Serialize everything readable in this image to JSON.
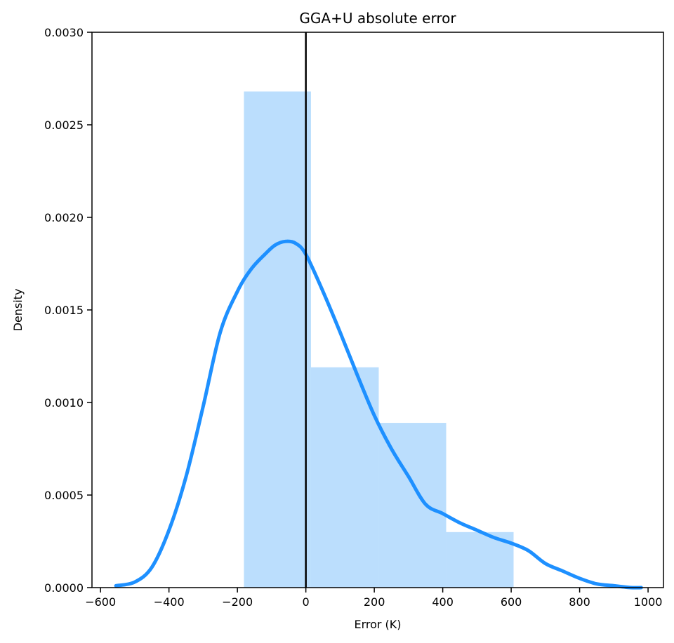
{
  "chart_data": {
    "type": "histogram_kde",
    "title": "GGA+U absolute error",
    "xlabel": "Error (K)",
    "ylabel": "Density",
    "xlim": [
      -625,
      1045
    ],
    "ylim": [
      0,
      0.003
    ],
    "xticks": [
      -600,
      -400,
      -200,
      0,
      200,
      400,
      600,
      800,
      1000
    ],
    "xtick_labels": [
      "−600",
      "−400",
      "−200",
      "0",
      "200",
      "400",
      "600",
      "800",
      "1000"
    ],
    "yticks": [
      0,
      0.0005,
      0.001,
      0.0015,
      0.002,
      0.0025,
      0.003
    ],
    "ytick_labels": [
      "0.0000",
      "0.0005",
      "0.0010",
      "0.0015",
      "0.0020",
      "0.0025",
      "0.0030"
    ],
    "bars": [
      {
        "x0": -181,
        "x1": 15,
        "density": 0.00268
      },
      {
        "x0": 15,
        "x1": 213,
        "density": 0.00119
      },
      {
        "x0": 213,
        "x1": 410,
        "density": 0.00089
      },
      {
        "x0": 410,
        "x1": 607,
        "density": 0.0003
      }
    ],
    "kde": {
      "x": [
        -555,
        -500,
        -450,
        -400,
        -350,
        -300,
        -250,
        -200,
        -160,
        -120,
        -90,
        -60,
        -30,
        0,
        50,
        100,
        150,
        200,
        250,
        300,
        350,
        400,
        450,
        500,
        550,
        600,
        650,
        700,
        750,
        800,
        850,
        900,
        950,
        980
      ],
      "y": [
        1e-05,
        3e-05,
        0.00011,
        0.00031,
        0.0006,
        0.00098,
        0.00138,
        0.0016,
        0.00172,
        0.0018,
        0.00185,
        0.00187,
        0.00186,
        0.0018,
        0.0016,
        0.00138,
        0.00115,
        0.00093,
        0.00075,
        0.0006,
        0.00045,
        0.0004,
        0.00035,
        0.00031,
        0.00027,
        0.00024,
        0.0002,
        0.00013,
        9e-05,
        5e-05,
        2e-05,
        1e-05,
        0.0,
        0.0
      ]
    },
    "vline_x": 0,
    "grid": false,
    "colors": {
      "bar_fill": "#bbdefd",
      "kde_line": "#1e90ff",
      "vline": "#000000",
      "axes": "#000000"
    }
  }
}
